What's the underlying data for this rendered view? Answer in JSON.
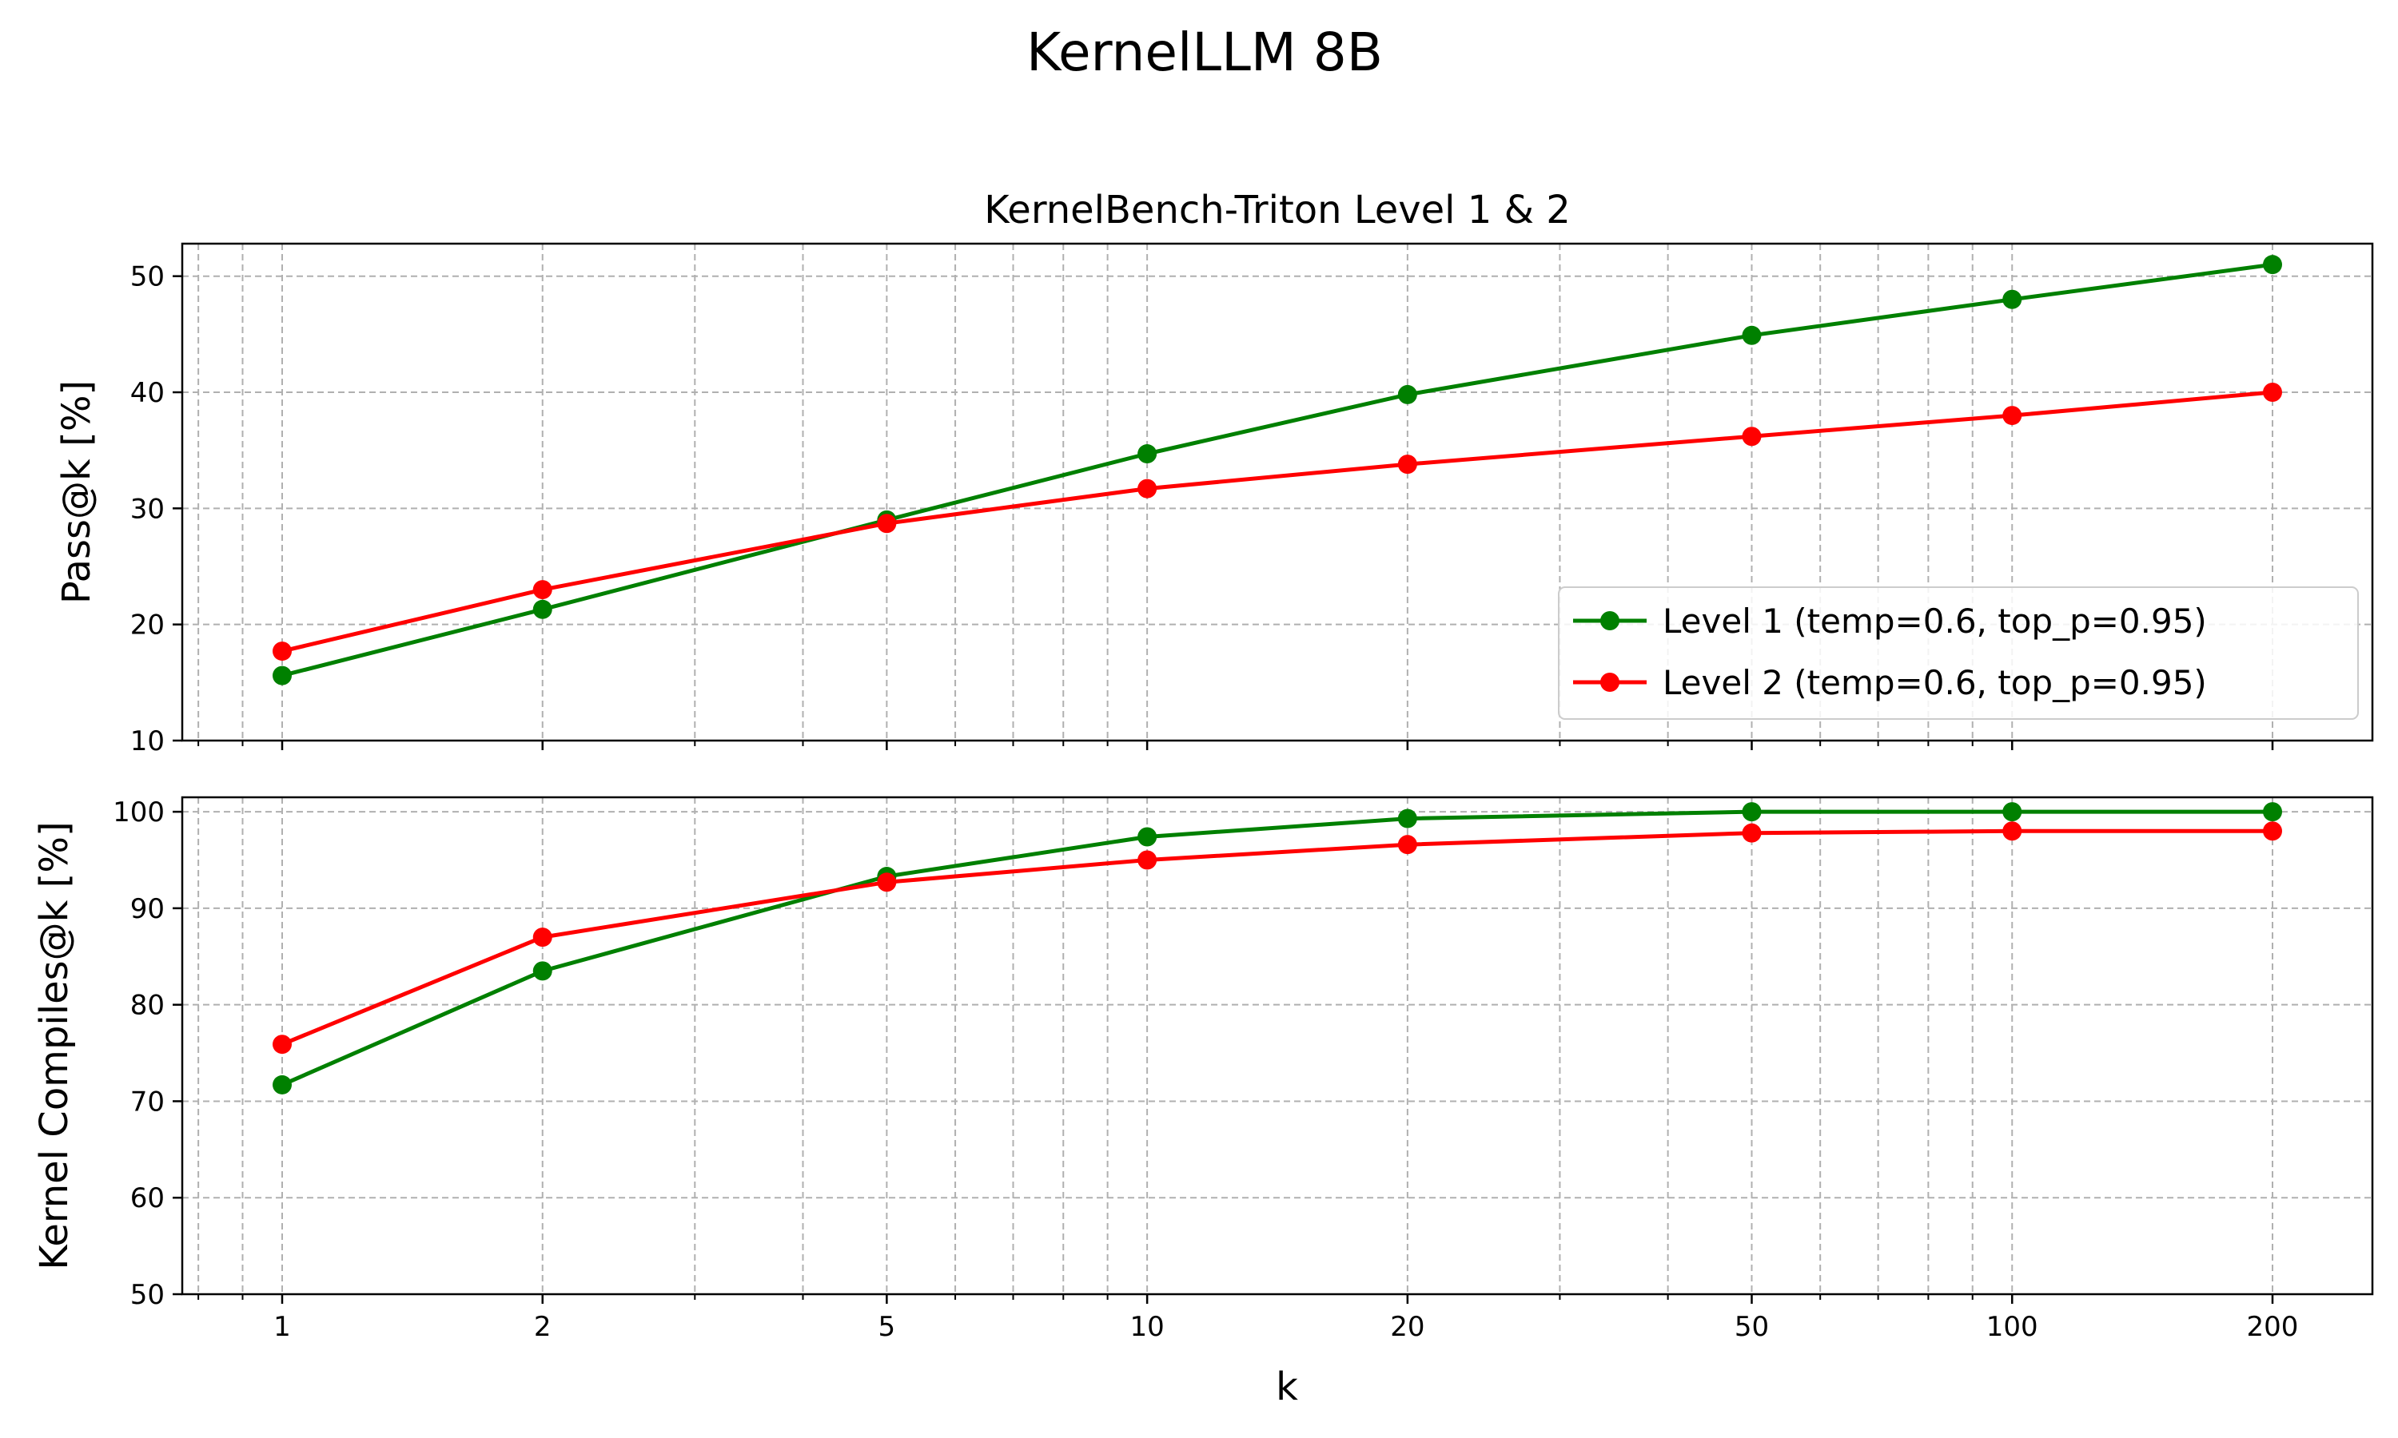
{
  "suptitle": "KernelLLM 8B",
  "chart_data": [
    {
      "type": "line",
      "title": "KernelBench-Triton Level 1 & 2",
      "xlabel": "",
      "ylabel": "Pass@k [%]",
      "xscale": "log",
      "x": [
        1,
        2,
        5,
        10,
        20,
        50,
        100,
        200
      ],
      "xticklabels": [
        "1",
        "2",
        "5",
        "10",
        "20",
        "50",
        "100",
        "200"
      ],
      "ylim": [
        10,
        52.8
      ],
      "yticks": [
        10,
        20,
        30,
        40,
        50
      ],
      "grid": true,
      "legend_position": "lower right",
      "series": [
        {
          "name": "Level 1 (temp=0.6, top_p=0.95)",
          "color": "#008000",
          "values": [
            15.6,
            21.3,
            29.0,
            34.7,
            39.8,
            44.9,
            48.0,
            51.0
          ]
        },
        {
          "name": "Level 2 (temp=0.6, top_p=0.95)",
          "color": "#ff0000",
          "values": [
            17.7,
            23.0,
            28.7,
            31.7,
            33.8,
            36.2,
            38.0,
            40.0
          ]
        }
      ]
    },
    {
      "type": "line",
      "title": "",
      "xlabel": "k",
      "ylabel": "Kernel Compiles@k [%]",
      "xscale": "log",
      "x": [
        1,
        2,
        5,
        10,
        20,
        50,
        100,
        200
      ],
      "xticklabels": [
        "1",
        "2",
        "5",
        "10",
        "20",
        "50",
        "100",
        "200"
      ],
      "ylim": [
        50,
        101.5
      ],
      "yticks": [
        50,
        60,
        70,
        80,
        90,
        100
      ],
      "grid": true,
      "series": [
        {
          "name": "Level 1 (temp=0.6, top_p=0.95)",
          "color": "#008000",
          "values": [
            71.7,
            83.5,
            93.3,
            97.4,
            99.3,
            100.0,
            100.0,
            100.0
          ]
        },
        {
          "name": "Level 2 (temp=0.6, top_p=0.95)",
          "color": "#ff0000",
          "values": [
            75.9,
            87.0,
            92.7,
            95.0,
            96.6,
            97.8,
            98.0,
            98.0
          ]
        }
      ]
    }
  ]
}
